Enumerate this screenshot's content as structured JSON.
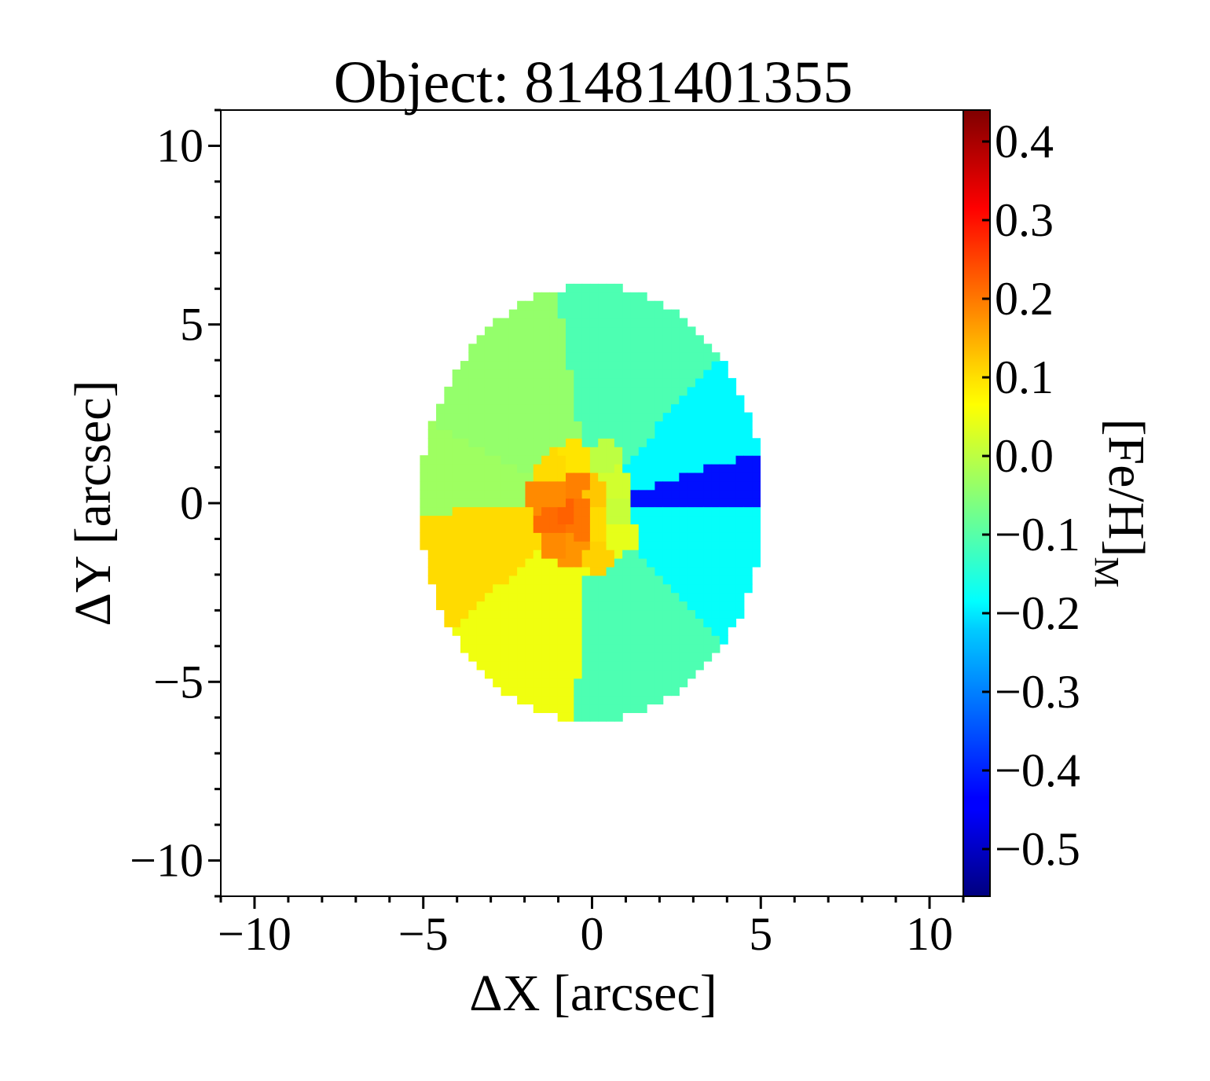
{
  "chart_data": {
    "type": "heatmap",
    "title": "Object: 81481401355",
    "xlabel": "ΔX [arcsec]",
    "ylabel": "ΔY [arcsec]",
    "xlim": [
      -11,
      11
    ],
    "ylim": [
      -11,
      11
    ],
    "x_ticks": [
      -10,
      -5,
      0,
      5,
      10
    ],
    "x_tick_labels": [
      "−10",
      "−5",
      "0",
      "5",
      "10"
    ],
    "y_ticks": [
      -10,
      -5,
      0,
      5,
      10
    ],
    "y_tick_labels": [
      "−10",
      "−5",
      "0",
      "5",
      "10"
    ],
    "colorbar": {
      "label_main": "[Fe/H]",
      "label_sub": "M",
      "range": [
        -0.56,
        0.44
      ],
      "colormap": "jet",
      "ticks": [
        0.4,
        0.3,
        0.2,
        0.1,
        0.0,
        -0.1,
        -0.2,
        -0.3,
        -0.4,
        -0.5
      ],
      "tick_labels": [
        "0.4",
        "0.3",
        "0.2",
        "0.1",
        "0.0",
        "−0.1",
        "−0.2",
        "−0.3",
        "−0.4",
        "−0.5"
      ]
    },
    "map": {
      "center": [
        0,
        0
      ],
      "semi_axes": [
        5.1,
        6.1
      ],
      "sectors": [
        {
          "from_deg": 0,
          "to_deg": 16,
          "value": -0.42
        },
        {
          "from_deg": 16,
          "to_deg": 48,
          "value": -0.19
        },
        {
          "from_deg": 48,
          "to_deg": 100,
          "value": -0.11
        },
        {
          "from_deg": 100,
          "to_deg": 155,
          "value": -0.04
        },
        {
          "from_deg": 155,
          "to_deg": 183,
          "value": -0.03
        },
        {
          "from_deg": 183,
          "to_deg": 220,
          "value": 0.1
        },
        {
          "from_deg": 220,
          "to_deg": 265,
          "value": 0.05
        },
        {
          "from_deg": 265,
          "to_deg": 315,
          "value": -0.11
        },
        {
          "from_deg": 315,
          "to_deg": 360,
          "value": -0.18
        }
      ],
      "core": [
        {
          "x": -1.5,
          "y": 0.2,
          "value": 0.18
        },
        {
          "x": -1.0,
          "y": 0.3,
          "value": 0.18
        },
        {
          "x": -0.5,
          "y": 0.5,
          "value": 0.19
        },
        {
          "x": -0.3,
          "y": 0.0,
          "value": 0.2
        },
        {
          "x": -0.8,
          "y": -0.3,
          "value": 0.22
        },
        {
          "x": -1.2,
          "y": -0.5,
          "value": 0.21
        },
        {
          "x": -0.5,
          "y": -0.7,
          "value": 0.2
        },
        {
          "x": -1.0,
          "y": -1.1,
          "value": 0.18
        },
        {
          "x": -0.6,
          "y": -1.2,
          "value": 0.17
        },
        {
          "x": 0.1,
          "y": 0.3,
          "value": 0.12
        },
        {
          "x": -1.2,
          "y": 1.0,
          "value": 0.1
        },
        {
          "x": -0.5,
          "y": 1.2,
          "value": 0.09
        },
        {
          "x": 0.2,
          "y": -0.6,
          "value": 0.1
        },
        {
          "x": 0.2,
          "y": -1.4,
          "value": 0.11
        },
        {
          "x": 0.6,
          "y": 0.6,
          "value": 0.02
        },
        {
          "x": 0.7,
          "y": -0.3,
          "value": 0.01
        },
        {
          "x": 0.4,
          "y": 1.2,
          "value": 0.0
        },
        {
          "x": 0.8,
          "y": -0.9,
          "value": 0.04
        }
      ]
    }
  }
}
